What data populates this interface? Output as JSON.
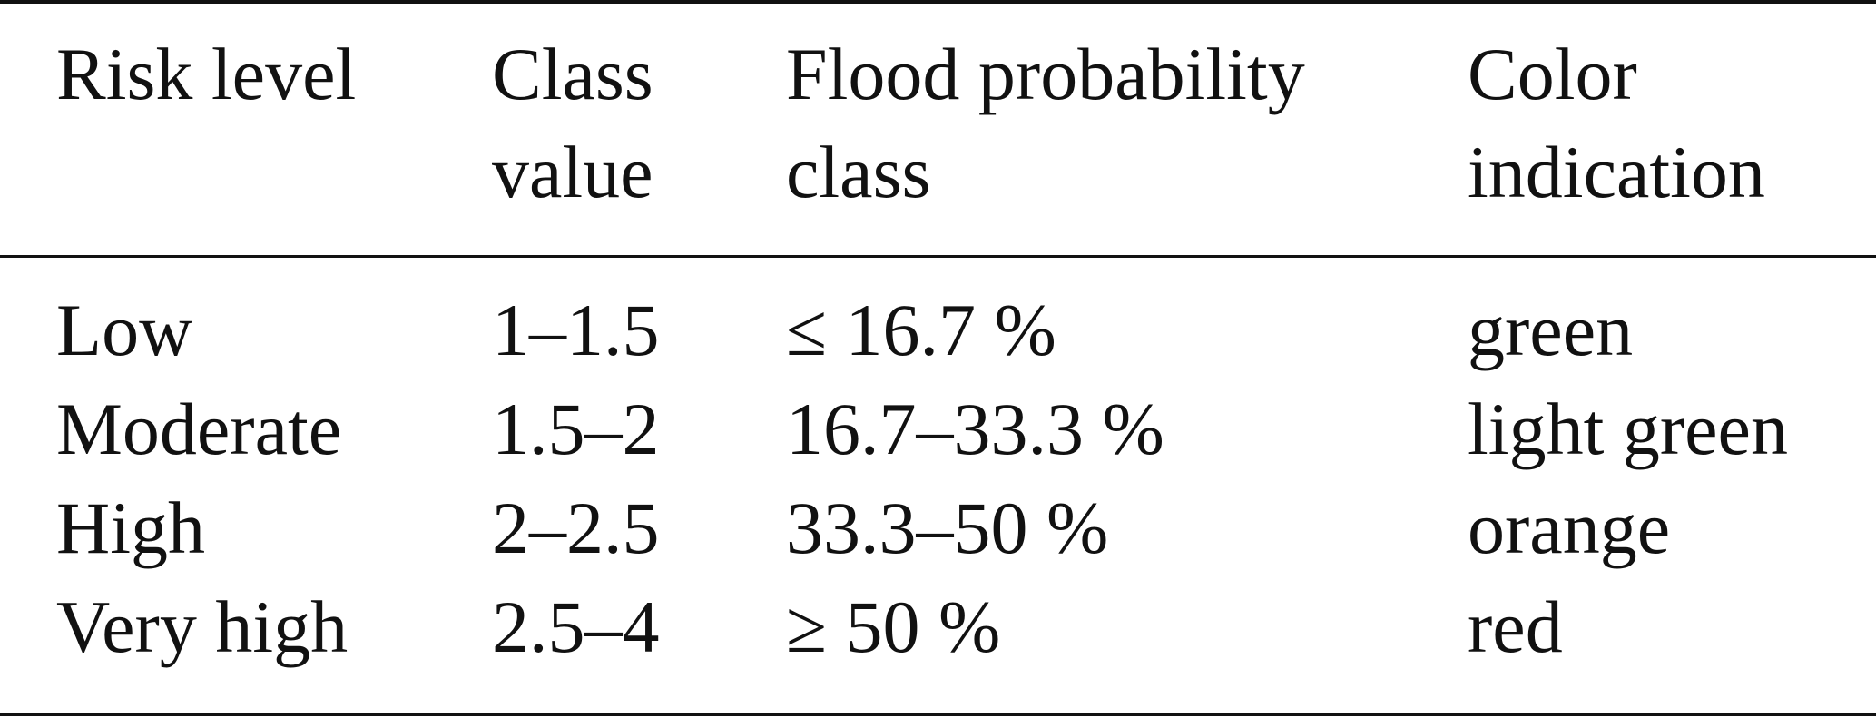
{
  "table": {
    "header": [
      "Risk level",
      "Class value",
      "Flood probability class",
      "Color indication"
    ],
    "rows": [
      [
        "Low",
        "1–1.5",
        "≤ 16.7 %",
        "green"
      ],
      [
        "Moderate",
        "1.5–2",
        "16.7–33.3 %",
        "light green"
      ],
      [
        "High",
        "2–2.5",
        "33.3–50 %",
        "orange"
      ],
      [
        "Very high",
        "2.5–4",
        "≥ 50 %",
        "red"
      ]
    ]
  }
}
